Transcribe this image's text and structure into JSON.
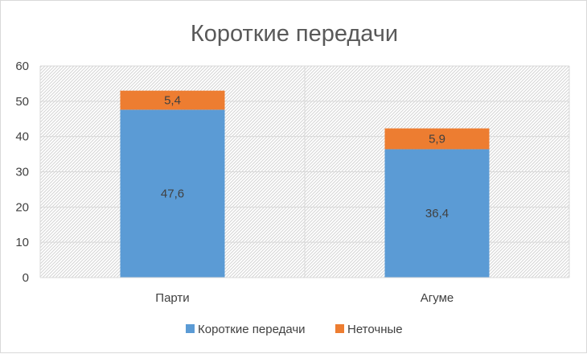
{
  "chart_data": {
    "type": "bar",
    "stacked": true,
    "title": "Короткие передачи",
    "categories": [
      "Парти",
      "Агуме"
    ],
    "series": [
      {
        "name": "Короткие передачи",
        "values": [
          47.6,
          36.4
        ],
        "labels": [
          "47,6",
          "36,4"
        ],
        "color": "#5b9bd5"
      },
      {
        "name": "Неточные",
        "values": [
          5.4,
          5.9
        ],
        "labels": [
          "5,4",
          "5,9"
        ],
        "color": "#ed7d31"
      }
    ],
    "ylim": [
      0,
      60
    ],
    "yticks": [
      0,
      10,
      20,
      30,
      40,
      50,
      60
    ],
    "grid": true,
    "plot_background": "hatched light gray",
    "legend_position": "bottom"
  }
}
